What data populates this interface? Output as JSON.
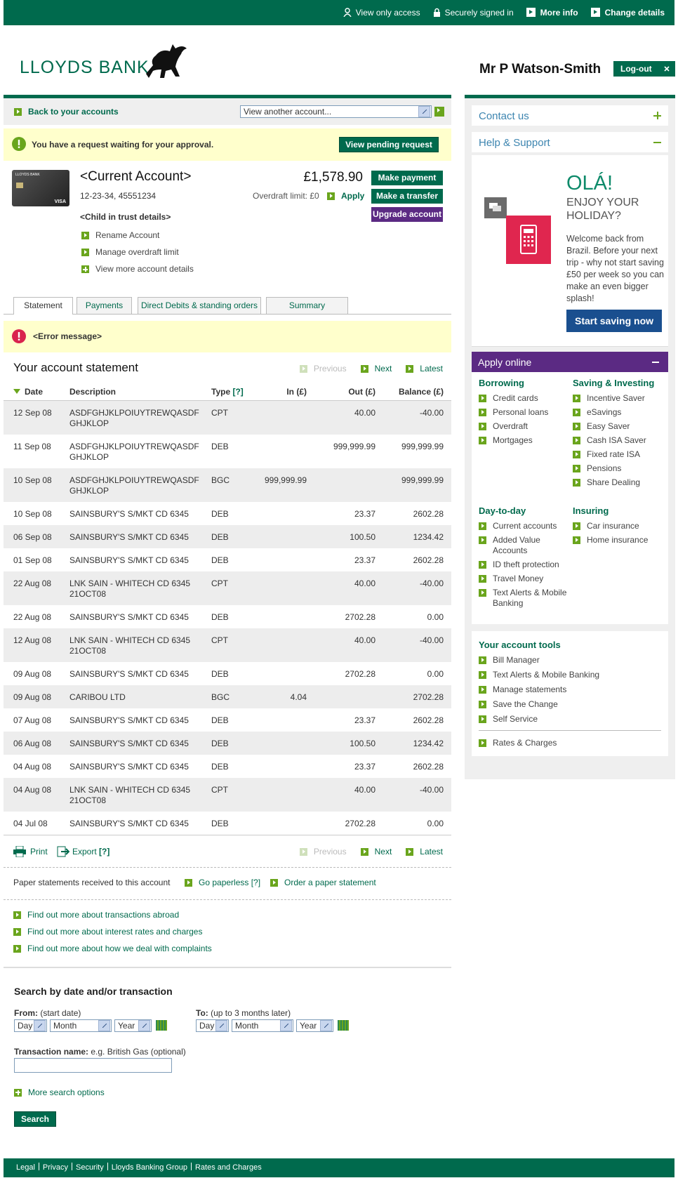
{
  "top_bar": {
    "view_only": "View only access",
    "signed_in": "Securely signed in",
    "more_info": "More info",
    "change_details": "Change details"
  },
  "header": {
    "logo": "LLOYDS BANK",
    "user": "Mr P Watson-Smith",
    "logout": "Log-out"
  },
  "account_nav": {
    "back": "Back to your accounts",
    "select": "View another account..."
  },
  "notice": {
    "text": "You have a request waiting for your approval.",
    "button": "View pending request"
  },
  "account": {
    "card_bank": "LLOYDS BANK",
    "card_brand": "VISA",
    "name": "<Current Account>",
    "number": "12-23-34, 45551234",
    "balance": "£1,578.90",
    "overdraft": "Overdraft limit: £0",
    "apply": "Apply",
    "trust": "<Child in trust details>",
    "links": [
      "Rename Account",
      "Manage overdraft limit",
      "View more account details"
    ],
    "buttons": [
      "Make payment",
      "Make a transfer",
      "Upgrade account"
    ]
  },
  "tabs": [
    "Statement",
    "Payments",
    "Direct Debits & standing orders",
    "Summary"
  ],
  "error": "<Error message>",
  "statement": {
    "title": "Your account statement",
    "pager": [
      "Previous",
      "Next",
      "Latest"
    ],
    "columns": [
      "Date",
      "Description",
      "Type",
      "In (£)",
      "Out (£)",
      "Balance (£)"
    ],
    "type_help": "[?]",
    "rows": [
      [
        "12 Sep 08",
        "ASDFGHJKLPOIUYTREWQASDF GHJKLOP",
        "CPT",
        null,
        "40.00",
        "-40.00"
      ],
      [
        "11 Sep 08",
        "ASDFGHJKLPOIUYTREWQASDF GHJKLOP",
        "DEB",
        null,
        "999,999.99",
        "999,999.99"
      ],
      [
        "10 Sep 08",
        "ASDFGHJKLPOIUYTREWQASDF GHJKLOP",
        "BGC",
        "999,999.99",
        null,
        "999,999.99"
      ],
      [
        "10 Sep 08",
        "SAINSBURY'S S/MKT CD 6345",
        "DEB",
        null,
        "23.37",
        "2602.28"
      ],
      [
        "06 Sep 08",
        "SAINSBURY'S S/MKT CD 6345",
        "DEB",
        null,
        "100.50",
        "1234.42"
      ],
      [
        "01 Sep 08",
        "SAINSBURY'S S/MKT CD 6345",
        "DEB",
        null,
        "23.37",
        "2602.28"
      ],
      [
        "22 Aug 08",
        "LNK SAIN - WHITECH CD 6345 21OCT08",
        "CPT",
        null,
        "40.00",
        "-40.00"
      ],
      [
        "22 Aug 08",
        "SAINSBURY'S S/MKT CD 6345",
        "DEB",
        null,
        "2702.28",
        "0.00"
      ],
      [
        "12 Aug 08",
        "LNK SAIN - WHITECH CD 6345 21OCT08",
        "CPT",
        null,
        "40.00",
        "-40.00"
      ],
      [
        "09 Aug 08",
        "SAINSBURY'S S/MKT CD 6345",
        "DEB",
        null,
        "2702.28",
        "0.00"
      ],
      [
        "09 Aug 08",
        "CARIBOU LTD",
        "BGC",
        "4.04",
        null,
        "2702.28"
      ],
      [
        "07 Aug 08",
        "SAINSBURY'S S/MKT CD 6345",
        "DEB",
        null,
        "23.37",
        "2602.28"
      ],
      [
        "06 Aug 08",
        "SAINSBURY'S S/MKT CD 6345",
        "DEB",
        null,
        "100.50",
        "1234.42"
      ],
      [
        "04 Aug 08",
        "SAINSBURY'S S/MKT CD 6345",
        "DEB",
        null,
        "23.37",
        "2602.28"
      ],
      [
        "04 Aug 08",
        "LNK SAIN - WHITECH CD 6345 21OCT08",
        "CPT",
        null,
        "40.00",
        "-40.00"
      ],
      [
        "04 Jul 08",
        "SAINSBURY'S S/MKT CD 6345",
        "DEB",
        null,
        "2702.28",
        "0.00"
      ]
    ]
  },
  "statement_actions": {
    "print": "Print",
    "export": "Export",
    "export_help": "[?]"
  },
  "paper": {
    "text": "Paper statements received to this account",
    "paperless": "Go paperless",
    "paperless_help": "[?]",
    "order": "Order a paper statement"
  },
  "more_links": [
    "Find out more about transactions abroad",
    "Find out more about interest rates and charges",
    "Find out more about how we deal with complaints"
  ],
  "search": {
    "title": "Search by date and/or transaction",
    "from_label": "From:",
    "from_hint": "(start date)",
    "to_label": "To:",
    "to_hint": "(up to 3 months later)",
    "selects": [
      "Day",
      "Month",
      "Year"
    ],
    "name_label": "Transaction name:",
    "name_hint": "e.g. British Gas (optional)",
    "more": "More search options",
    "button": "Search"
  },
  "footer": [
    "Legal",
    "Privacy",
    "Security",
    "Lloyds Banking Group",
    "Rates and Charges"
  ],
  "sidebar": {
    "contact": "Contact us",
    "help": "Help & Support",
    "promo": {
      "heading": "OLÁ!",
      "subheading": "ENJOY YOUR HOLIDAY?",
      "body": "Welcome back from Brazil. Before your next trip - why not start saving £50 per week so you can make an even bigger splash!",
      "button": "Start saving now"
    },
    "apply": {
      "title": "Apply online",
      "groups": [
        {
          "title": "Borrowing",
          "links": [
            "Credit cards",
            "Personal loans",
            "Overdraft",
            "Mortgages"
          ]
        },
        {
          "title": "Saving & Investing",
          "links": [
            "Incentive Saver",
            "eSavings",
            "Easy Saver",
            "Cash ISA Saver",
            "Fixed rate ISA",
            "Pensions",
            "Share Dealing"
          ]
        },
        {
          "title": "Day-to-day",
          "links": [
            "Current accounts",
            "Added Value Accounts",
            "ID theft protection",
            "Travel Money",
            "Text Alerts & Mobile Banking"
          ]
        },
        {
          "title": "Insuring",
          "links": [
            "Car insurance",
            "Home insurance"
          ]
        }
      ]
    },
    "tools": {
      "title": "Your account tools",
      "links": [
        "Bill Manager",
        "Text Alerts & Mobile Banking",
        "Manage statements",
        "Save the Change",
        "Self Service"
      ],
      "rates": "Rates & Charges"
    }
  }
}
